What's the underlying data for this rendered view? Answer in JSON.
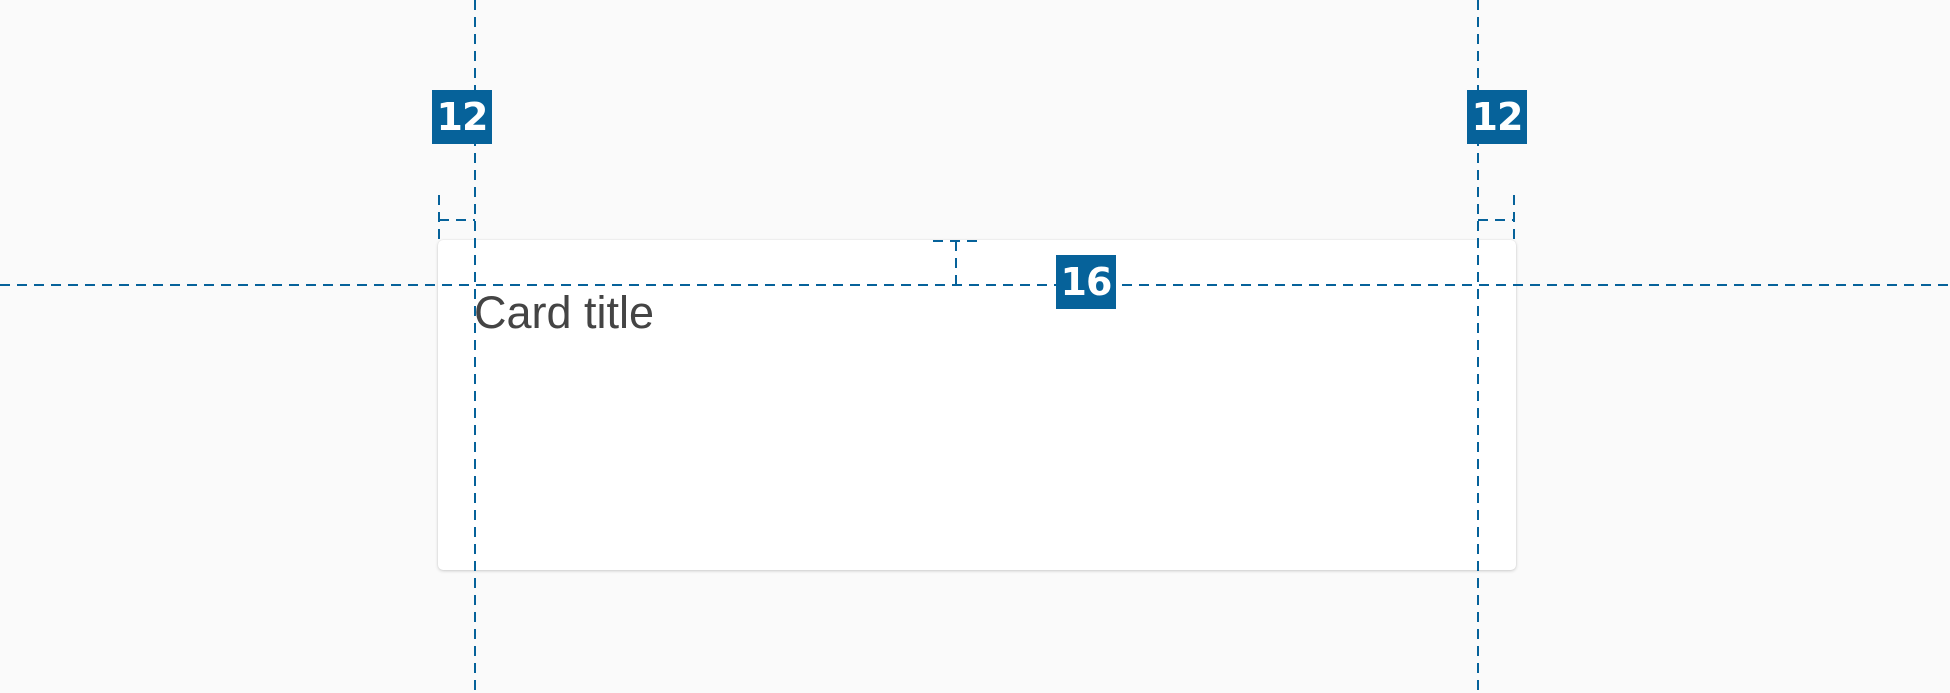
{
  "card": {
    "title": "Card title"
  },
  "annotations": {
    "left_padding": "12",
    "right_padding": "12",
    "top_padding": "16"
  },
  "colors": {
    "background": "#fafafa",
    "card": "#ffffff",
    "annotation": "#06629a",
    "title_text": "#444444"
  }
}
